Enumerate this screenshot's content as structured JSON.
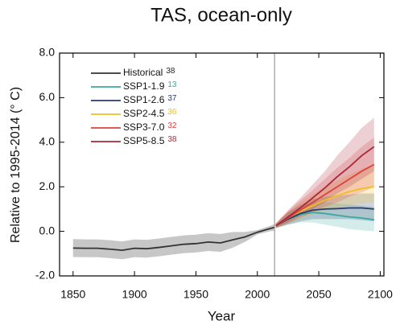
{
  "chart_data": {
    "type": "line",
    "title": "TAS, ocean-only",
    "xlabel": "Year",
    "ylabel": "Relative to 1995-2014 (° C)",
    "xlim": [
      1839,
      2103
    ],
    "xticks": [
      1850,
      1900,
      1950,
      2000,
      2050,
      2100
    ],
    "ylim": [
      -2,
      8
    ],
    "yticks": [
      {
        "value": -2,
        "label": "-2.0"
      },
      {
        "value": 0,
        "label": "0.0"
      },
      {
        "value": 2,
        "label": "2.0"
      },
      {
        "value": 4,
        "label": "4.0"
      },
      {
        "value": 6,
        "label": "6.0"
      },
      {
        "value": 8,
        "label": "8.0"
      }
    ],
    "vline": 2014,
    "legend": "upper-left",
    "series": [
      {
        "name": "Historical",
        "count": 38,
        "color": "#333333",
        "band_color": "#999999",
        "count_color": "#222222",
        "x": [
          1850,
          1860,
          1870,
          1880,
          1890,
          1900,
          1910,
          1920,
          1930,
          1940,
          1950,
          1960,
          1970,
          1980,
          1990,
          2000,
          2010,
          2014
        ],
        "values": [
          -0.75,
          -0.76,
          -0.76,
          -0.8,
          -0.85,
          -0.76,
          -0.78,
          -0.72,
          -0.65,
          -0.58,
          -0.55,
          -0.48,
          -0.52,
          -0.38,
          -0.25,
          -0.04,
          0.12,
          0.18
        ],
        "upper": [
          -0.35,
          -0.36,
          -0.36,
          -0.4,
          -0.45,
          -0.36,
          -0.38,
          -0.32,
          -0.25,
          -0.18,
          -0.15,
          -0.08,
          -0.12,
          -0.03,
          -0.03,
          0.06,
          0.24,
          0.33
        ],
        "lower": [
          -1.15,
          -1.16,
          -1.16,
          -1.2,
          -1.25,
          -1.16,
          -1.18,
          -1.12,
          -1.05,
          -0.98,
          -0.95,
          -0.88,
          -0.92,
          -0.73,
          -0.47,
          -0.14,
          0.0,
          0.03
        ]
      },
      {
        "name": "SSP1-1.9",
        "count": 13,
        "color": "#3aa8a0",
        "band_color": "#3aa8a0",
        "count_color": "#3aa8a0",
        "x": [
          2015,
          2025,
          2035,
          2045,
          2055,
          2065,
          2075,
          2085,
          2095
        ],
        "values": [
          0.25,
          0.55,
          0.75,
          0.85,
          0.8,
          0.72,
          0.65,
          0.6,
          0.52
        ],
        "upper": [
          0.35,
          0.85,
          1.15,
          1.3,
          1.3,
          1.25,
          1.2,
          1.15,
          1.1
        ],
        "lower": [
          0.15,
          0.3,
          0.4,
          0.4,
          0.3,
          0.2,
          0.1,
          0.05,
          0.0
        ]
      },
      {
        "name": "SSP1-2.6",
        "count": 37,
        "color": "#2a3a6a",
        "band_color": "#2a3a6a",
        "count_color": "#2a3a6a",
        "x": [
          2015,
          2025,
          2035,
          2045,
          2055,
          2065,
          2075,
          2085,
          2095
        ],
        "values": [
          0.25,
          0.55,
          0.8,
          0.95,
          1.0,
          1.02,
          1.05,
          1.05,
          1.0
        ],
        "upper": [
          0.35,
          0.85,
          1.2,
          1.45,
          1.55,
          1.6,
          1.65,
          1.7,
          1.7
        ],
        "lower": [
          0.15,
          0.3,
          0.45,
          0.55,
          0.55,
          0.55,
          0.55,
          0.5,
          0.45
        ]
      },
      {
        "name": "SSP2-4.5",
        "count": 36,
        "color": "#f0c020",
        "band_color": "#f0c020",
        "count_color": "#f0c020",
        "x": [
          2015,
          2025,
          2035,
          2045,
          2055,
          2065,
          2075,
          2085,
          2095
        ],
        "values": [
          0.25,
          0.6,
          0.9,
          1.15,
          1.4,
          1.6,
          1.78,
          1.92,
          2.0
        ],
        "upper": [
          0.35,
          0.9,
          1.3,
          1.65,
          2.0,
          2.3,
          2.55,
          2.8,
          3.0
        ],
        "lower": [
          0.15,
          0.35,
          0.55,
          0.75,
          0.9,
          1.05,
          1.15,
          1.25,
          1.3
        ]
      },
      {
        "name": "SSP3-7.0",
        "count": 32,
        "color": "#e04040",
        "band_color": "#e04040",
        "count_color": "#e04040",
        "x": [
          2015,
          2025,
          2035,
          2045,
          2055,
          2065,
          2075,
          2085,
          2095
        ],
        "values": [
          0.25,
          0.6,
          0.95,
          1.3,
          1.65,
          2.0,
          2.35,
          2.7,
          3.0
        ],
        "upper": [
          0.35,
          0.9,
          1.4,
          1.85,
          2.35,
          2.85,
          3.3,
          3.8,
          4.2
        ],
        "lower": [
          0.15,
          0.35,
          0.6,
          0.85,
          1.1,
          1.3,
          1.55,
          1.75,
          2.0
        ]
      },
      {
        "name": "SSP5-8.5",
        "count": 38,
        "color": "#a8283a",
        "band_color": "#a8283a",
        "count_color": "#a8283a",
        "x": [
          2015,
          2025,
          2035,
          2045,
          2055,
          2065,
          2075,
          2085,
          2095
        ],
        "values": [
          0.25,
          0.65,
          1.05,
          1.5,
          1.95,
          2.45,
          2.9,
          3.4,
          3.8
        ],
        "upper": [
          0.35,
          0.95,
          1.5,
          2.1,
          2.7,
          3.4,
          4.0,
          4.65,
          5.1
        ],
        "lower": [
          0.15,
          0.4,
          0.7,
          1.0,
          1.3,
          1.7,
          2.0,
          2.35,
          2.7
        ]
      }
    ]
  }
}
